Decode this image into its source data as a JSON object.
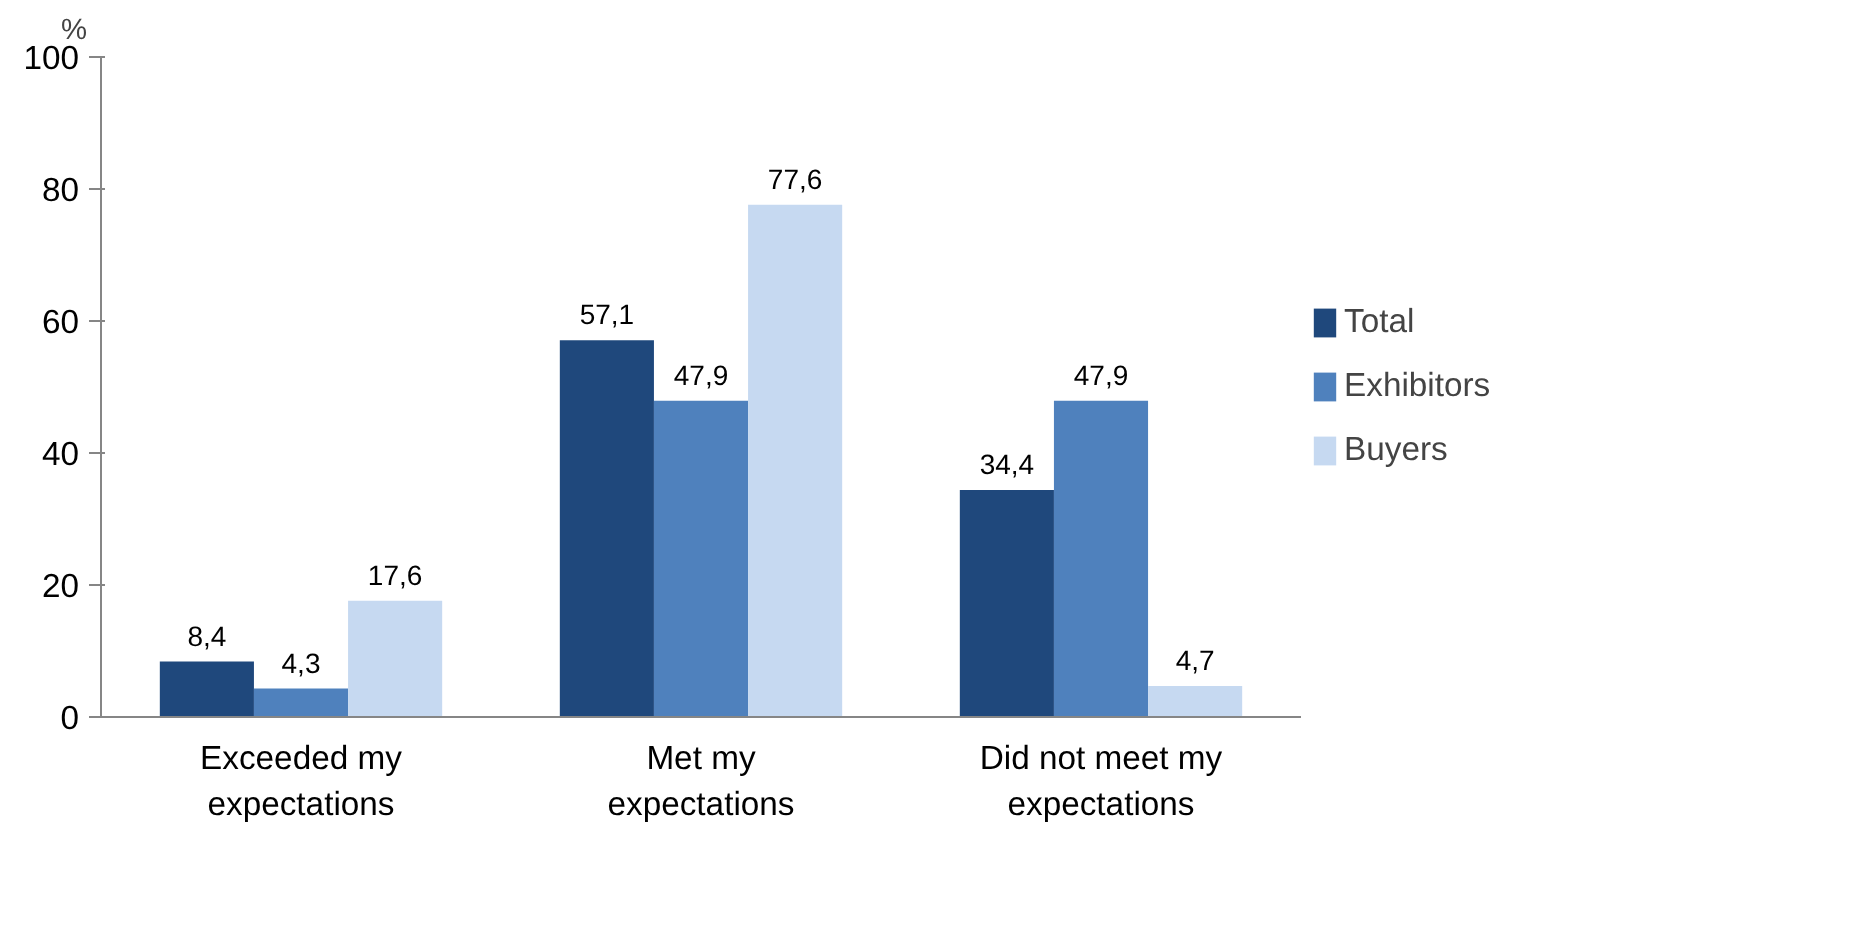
{
  "chart_data": {
    "type": "bar",
    "ylabel": "%",
    "categories": [
      "Exceeded my expectations",
      "Met my expectations",
      "Did not meet my expectations"
    ],
    "series": [
      {
        "name": "Total",
        "color": "#1f487c",
        "values": [
          8.4,
          57.1,
          34.4
        ],
        "value_labels": [
          "8,4",
          "57,1",
          "34,4"
        ]
      },
      {
        "name": "Exhibitors",
        "color": "#4f81bd",
        "values": [
          4.3,
          47.9,
          47.9
        ],
        "value_labels": [
          "4,3",
          "47,9",
          "47,9"
        ]
      },
      {
        "name": "Buyers",
        "color": "#c6d9f1",
        "values": [
          17.6,
          77.6,
          4.7
        ],
        "value_labels": [
          "17,6",
          "77,6",
          "4,7"
        ]
      }
    ],
    "ylim": [
      0,
      100
    ],
    "yticks": [
      0,
      20,
      40,
      60,
      80,
      100
    ],
    "grid": false,
    "legend": "right"
  }
}
